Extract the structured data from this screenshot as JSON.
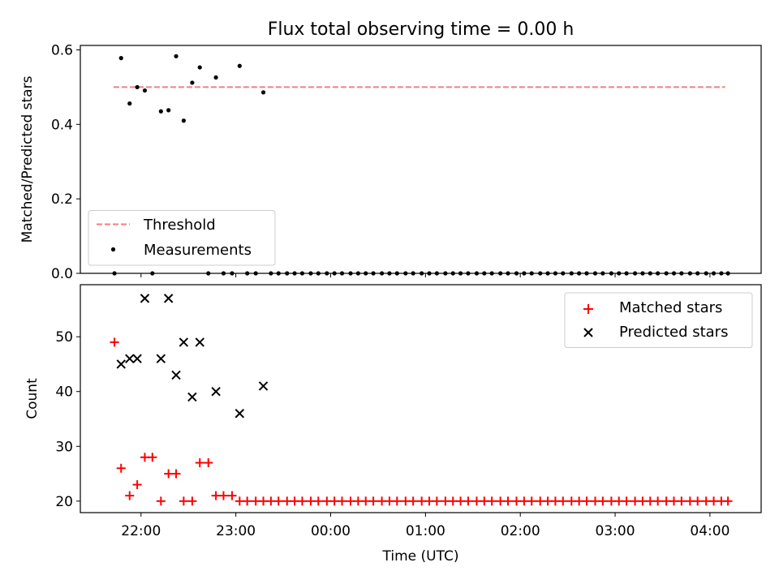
{
  "chart_data": {
    "title": "Flux total observing time = 0.00 h",
    "x_axis": {
      "label": "Time (UTC)",
      "tick_labels": [
        "22:00",
        "23:00",
        "00:00",
        "01:00",
        "02:00",
        "03:00",
        "04:00"
      ],
      "tick_hours": [
        0,
        1,
        2,
        3,
        4,
        5,
        6
      ],
      "range_hours": [
        -0.64,
        6.54
      ],
      "origin_time": "22:00"
    },
    "top": {
      "type": "scatter",
      "ylabel": "Matched/Predicted stars",
      "ylim": [
        0,
        0.612
      ],
      "yticks": [
        0.0,
        0.2,
        0.4,
        0.6
      ],
      "ytick_labels": [
        "0.0",
        "0.2",
        "0.4",
        "0.6"
      ],
      "threshold": {
        "name": "Threshold",
        "value": 0.5,
        "x_range": [
          -0.29,
          6.16
        ],
        "color": "#f08080"
      },
      "measurements": {
        "name": "Measurements",
        "color": "#000000",
        "points": [
          [
            -0.28,
            0.0
          ],
          [
            -0.21,
            0.578
          ],
          [
            -0.12,
            0.456
          ],
          [
            -0.04,
            0.5
          ],
          [
            0.04,
            0.491
          ],
          [
            0.12,
            0.0
          ],
          [
            0.21,
            0.435
          ],
          [
            0.29,
            0.438
          ],
          [
            0.37,
            0.583
          ],
          [
            0.45,
            0.41
          ],
          [
            0.54,
            0.512
          ],
          [
            0.62,
            0.553
          ],
          [
            0.71,
            0.0
          ],
          [
            0.79,
            0.526
          ],
          [
            0.87,
            0.0
          ],
          [
            0.96,
            0.0
          ],
          [
            1.04,
            0.557
          ],
          [
            1.12,
            0.0
          ],
          [
            1.21,
            0.0
          ],
          [
            1.29,
            0.486
          ],
          [
            1.37,
            0.0
          ],
          [
            1.45,
            0.0
          ],
          [
            1.54,
            0.0
          ],
          [
            1.62,
            0.0
          ],
          [
            1.7,
            0.0
          ],
          [
            1.79,
            0.0
          ],
          [
            1.87,
            0.0
          ],
          [
            1.96,
            0.0
          ],
          [
            2.04,
            0.0
          ],
          [
            2.12,
            0.0
          ],
          [
            2.21,
            0.0
          ],
          [
            2.29,
            0.0
          ],
          [
            2.37,
            0.0
          ],
          [
            2.45,
            0.0
          ],
          [
            2.54,
            0.0
          ],
          [
            2.62,
            0.0
          ],
          [
            2.7,
            0.0
          ],
          [
            2.79,
            0.0
          ],
          [
            2.87,
            0.0
          ],
          [
            2.96,
            0.0
          ],
          [
            3.04,
            0.0
          ],
          [
            3.12,
            0.0
          ],
          [
            3.21,
            0.0
          ],
          [
            3.29,
            0.0
          ],
          [
            3.37,
            0.0
          ],
          [
            3.45,
            0.0
          ],
          [
            3.54,
            0.0
          ],
          [
            3.62,
            0.0
          ],
          [
            3.7,
            0.0
          ],
          [
            3.79,
            0.0
          ],
          [
            3.87,
            0.0
          ],
          [
            3.96,
            0.0
          ],
          [
            4.04,
            0.0
          ],
          [
            4.12,
            0.0
          ],
          [
            4.21,
            0.0
          ],
          [
            4.29,
            0.0
          ],
          [
            4.37,
            0.0
          ],
          [
            4.45,
            0.0
          ],
          [
            4.54,
            0.0
          ],
          [
            4.62,
            0.0
          ],
          [
            4.7,
            0.0
          ],
          [
            4.79,
            0.0
          ],
          [
            4.87,
            0.0
          ],
          [
            4.96,
            0.0
          ],
          [
            5.04,
            0.0
          ],
          [
            5.12,
            0.0
          ],
          [
            5.21,
            0.0
          ],
          [
            5.29,
            0.0
          ],
          [
            5.37,
            0.0
          ],
          [
            5.45,
            0.0
          ],
          [
            5.54,
            0.0
          ],
          [
            5.62,
            0.0
          ],
          [
            5.7,
            0.0
          ],
          [
            5.79,
            0.0
          ],
          [
            5.87,
            0.0
          ],
          [
            5.96,
            0.0
          ],
          [
            6.04,
            0.0
          ],
          [
            6.12,
            0.0
          ],
          [
            6.19,
            0.0
          ]
        ]
      },
      "legend": {
        "placement": "lower-left",
        "entries": [
          "Threshold",
          "Measurements"
        ]
      }
    },
    "bottom": {
      "type": "scatter",
      "ylabel": "Count",
      "ylim": [
        17.9,
        59.5
      ],
      "yticks": [
        20,
        30,
        40,
        50
      ],
      "ytick_labels": [
        "20",
        "30",
        "40",
        "50"
      ],
      "matched": {
        "name": "Matched stars",
        "color": "#ff0000",
        "points": [
          [
            -0.28,
            49
          ],
          [
            -0.21,
            26
          ],
          [
            -0.12,
            21
          ],
          [
            -0.04,
            23
          ],
          [
            0.04,
            28
          ],
          [
            0.12,
            28
          ],
          [
            0.21,
            20
          ],
          [
            0.29,
            25
          ],
          [
            0.37,
            25
          ],
          [
            0.45,
            20
          ],
          [
            0.54,
            20
          ],
          [
            0.62,
            27
          ],
          [
            0.71,
            27
          ],
          [
            0.79,
            21
          ],
          [
            0.87,
            21
          ],
          [
            0.96,
            21
          ],
          [
            1.04,
            20
          ],
          [
            1.12,
            20
          ],
          [
            1.21,
            20
          ],
          [
            1.29,
            20
          ],
          [
            1.37,
            20
          ],
          [
            1.45,
            20
          ],
          [
            1.54,
            20
          ],
          [
            1.62,
            20
          ],
          [
            1.7,
            20
          ],
          [
            1.79,
            20
          ],
          [
            1.87,
            20
          ],
          [
            1.96,
            20
          ],
          [
            2.04,
            20
          ],
          [
            2.12,
            20
          ],
          [
            2.21,
            20
          ],
          [
            2.29,
            20
          ],
          [
            2.37,
            20
          ],
          [
            2.45,
            20
          ],
          [
            2.54,
            20
          ],
          [
            2.62,
            20
          ],
          [
            2.7,
            20
          ],
          [
            2.79,
            20
          ],
          [
            2.87,
            20
          ],
          [
            2.96,
            20
          ],
          [
            3.04,
            20
          ],
          [
            3.12,
            20
          ],
          [
            3.21,
            20
          ],
          [
            3.29,
            20
          ],
          [
            3.37,
            20
          ],
          [
            3.45,
            20
          ],
          [
            3.54,
            20
          ],
          [
            3.62,
            20
          ],
          [
            3.7,
            20
          ],
          [
            3.79,
            20
          ],
          [
            3.87,
            20
          ],
          [
            3.96,
            20
          ],
          [
            4.04,
            20
          ],
          [
            4.12,
            20
          ],
          [
            4.21,
            20
          ],
          [
            4.29,
            20
          ],
          [
            4.37,
            20
          ],
          [
            4.45,
            20
          ],
          [
            4.54,
            20
          ],
          [
            4.62,
            20
          ],
          [
            4.7,
            20
          ],
          [
            4.79,
            20
          ],
          [
            4.87,
            20
          ],
          [
            4.96,
            20
          ],
          [
            5.04,
            20
          ],
          [
            5.12,
            20
          ],
          [
            5.21,
            20
          ],
          [
            5.29,
            20
          ],
          [
            5.37,
            20
          ],
          [
            5.45,
            20
          ],
          [
            5.54,
            20
          ],
          [
            5.62,
            20
          ],
          [
            5.7,
            20
          ],
          [
            5.79,
            20
          ],
          [
            5.87,
            20
          ],
          [
            5.96,
            20
          ],
          [
            6.04,
            20
          ],
          [
            6.12,
            20
          ],
          [
            6.19,
            20
          ]
        ]
      },
      "predicted": {
        "name": "Predicted stars",
        "color": "#000000",
        "points": [
          [
            -0.21,
            45
          ],
          [
            -0.12,
            46
          ],
          [
            -0.04,
            46
          ],
          [
            0.04,
            57
          ],
          [
            0.21,
            46
          ],
          [
            0.29,
            57
          ],
          [
            0.37,
            43
          ],
          [
            0.45,
            49
          ],
          [
            0.54,
            39
          ],
          [
            0.62,
            49
          ],
          [
            0.79,
            40
          ],
          [
            1.04,
            36
          ],
          [
            1.29,
            41
          ]
        ]
      },
      "legend": {
        "placement": "upper-right",
        "entries": [
          "Matched stars",
          "Predicted stars"
        ]
      }
    }
  }
}
